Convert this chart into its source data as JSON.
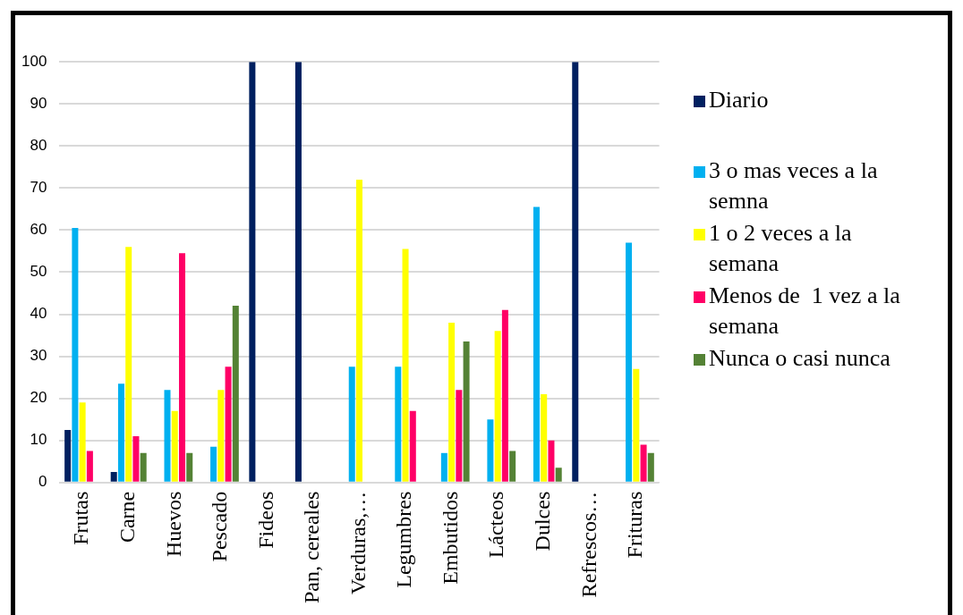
{
  "chart_data": {
    "type": "bar",
    "categories": [
      "Frutas",
      "Carne",
      "Huevos",
      "Pescado",
      "Fideos",
      "Pan, cereales",
      "Verduras,…",
      "Legumbres",
      "Embutidos",
      "Lácteos",
      "Dulces",
      "Refrescos…",
      "Frituras"
    ],
    "series": [
      {
        "name": "Diario",
        "color": "#002060",
        "values": [
          12.5,
          2.5,
          0,
          0,
          100,
          100,
          0,
          0,
          0,
          0,
          0,
          100,
          0
        ]
      },
      {
        "name": "3 o mas veces a la semna",
        "color": "#00b0f0",
        "values": [
          60.5,
          23.5,
          22,
          8.5,
          0,
          0,
          27.5,
          27.5,
          7,
          15,
          65.5,
          0,
          57
        ]
      },
      {
        "name": "1 o 2 veces a la semana",
        "color": "#ffff00",
        "values": [
          19,
          56,
          17,
          22,
          0,
          0,
          72,
          55.5,
          38,
          36,
          21,
          0,
          27
        ]
      },
      {
        "name": "Menos de  1 vez a la semana",
        "color": "#ff0066",
        "values": [
          7.5,
          11,
          54.5,
          27.5,
          0,
          0,
          0,
          17,
          22,
          41,
          10,
          0,
          9
        ]
      },
      {
        "name": "Nunca o casi nunca",
        "color": "#548235",
        "values": [
          0,
          7,
          7,
          42,
          0,
          0,
          0,
          0,
          33.5,
          7.5,
          3.5,
          0,
          7
        ]
      }
    ],
    "ylim": [
      0,
      100
    ],
    "yticks": [
      0,
      10,
      20,
      30,
      40,
      50,
      60,
      70,
      80,
      90,
      100
    ],
    "grid": "y",
    "legend": "right"
  }
}
